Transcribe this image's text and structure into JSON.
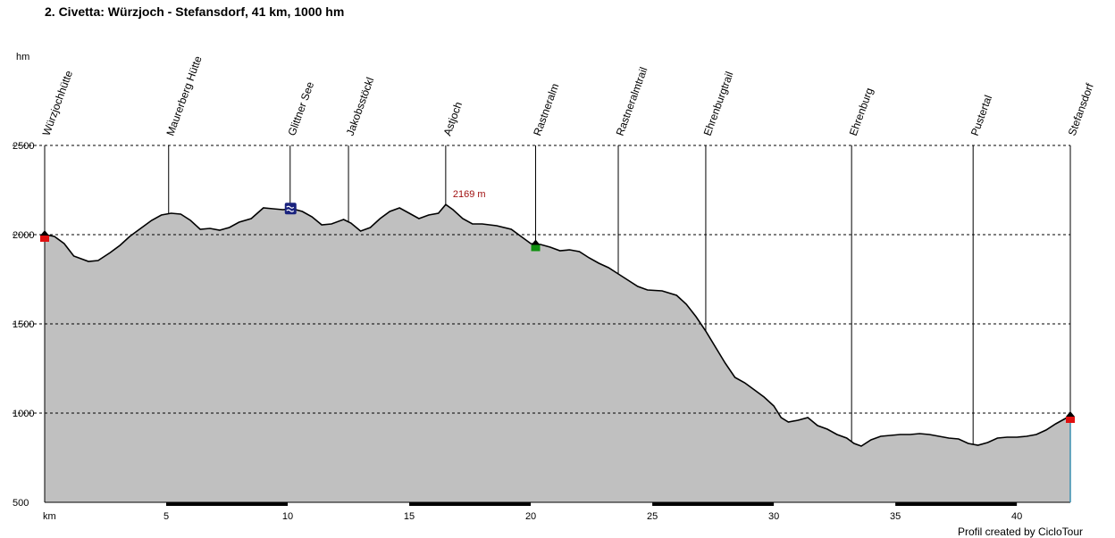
{
  "title": "2. Civetta: Würzjoch - Stefansdorf, 41 km, 1000 hm",
  "credit": "Profil created by CicloTour",
  "chart_data": {
    "type": "area",
    "y_unit": "hm",
    "x_unit": "km",
    "xlim": [
      0,
      42.2
    ],
    "ylim": [
      500,
      2500
    ],
    "x_ticks": [
      5,
      10,
      15,
      20,
      25,
      30,
      35,
      40
    ],
    "y_ticks": [
      500,
      1000,
      1500,
      2000,
      2500
    ],
    "grid": "horizontal dashed",
    "peak_label": "2169 m",
    "peak": {
      "x": 16.5,
      "y": 2169
    },
    "waypoints": [
      {
        "name": "Würzjochhütte",
        "x": 0
      },
      {
        "name": "Maurerberg Hütte",
        "x": 5.1
      },
      {
        "name": "Glittner See",
        "x": 10.1
      },
      {
        "name": "Jakobsstöckl",
        "x": 12.5
      },
      {
        "name": "Astjoch",
        "x": 16.5
      },
      {
        "name": "Rastneralm",
        "x": 20.2
      },
      {
        "name": "Rastneralmtrail",
        "x": 23.6
      },
      {
        "name": "Ehrenburgtrail",
        "x": 27.2
      },
      {
        "name": "Ehrenburg",
        "x": 33.2
      },
      {
        "name": "Pustertal",
        "x": 38.2
      },
      {
        "name": "Stefansdorf",
        "x": 42.2
      }
    ],
    "x": [
      0,
      0.4,
      0.8,
      1.2,
      1.8,
      2.2,
      2.7,
      3.1,
      3.5,
      4.0,
      4.4,
      4.8,
      5.2,
      5.6,
      6.0,
      6.4,
      6.8,
      7.2,
      7.6,
      8.0,
      8.5,
      9.0,
      9.4,
      9.8,
      10.2,
      10.6,
      11.0,
      11.4,
      11.8,
      12.3,
      12.6,
      13.0,
      13.4,
      13.8,
      14.2,
      14.6,
      15.0,
      15.4,
      15.8,
      16.2,
      16.5,
      16.8,
      17.2,
      17.6,
      18.0,
      18.6,
      19.2,
      19.6,
      20.0,
      20.4,
      20.8,
      21.2,
      21.6,
      22.0,
      22.4,
      22.8,
      23.2,
      23.6,
      24.0,
      24.4,
      24.8,
      25.4,
      26.0,
      26.4,
      26.8,
      27.2,
      27.6,
      28.0,
      28.4,
      28.8,
      29.2,
      29.6,
      30.0,
      30.3,
      30.6,
      31.0,
      31.4,
      31.8,
      32.2,
      32.6,
      33.0,
      33.3,
      33.6,
      34.0,
      34.4,
      34.8,
      35.2,
      35.6,
      36.0,
      36.4,
      36.8,
      37.2,
      37.6,
      38.0,
      38.4,
      38.8,
      39.2,
      39.6,
      40.0,
      40.4,
      40.8,
      41.2,
      41.6,
      42.0,
      42.2
    ],
    "y": [
      2000,
      1990,
      1950,
      1880,
      1850,
      1855,
      1900,
      1940,
      1990,
      2040,
      2080,
      2110,
      2120,
      2115,
      2080,
      2030,
      2035,
      2025,
      2040,
      2070,
      2090,
      2150,
      2145,
      2140,
      2145,
      2130,
      2100,
      2055,
      2060,
      2085,
      2065,
      2020,
      2040,
      2090,
      2130,
      2150,
      2120,
      2090,
      2110,
      2120,
      2169,
      2140,
      2090,
      2060,
      2060,
      2050,
      2030,
      1990,
      1950,
      1945,
      1930,
      1910,
      1915,
      1905,
      1870,
      1840,
      1815,
      1780,
      1745,
      1710,
      1690,
      1685,
      1660,
      1610,
      1540,
      1460,
      1370,
      1280,
      1200,
      1170,
      1130,
      1090,
      1040,
      975,
      950,
      960,
      975,
      930,
      910,
      880,
      860,
      830,
      815,
      850,
      870,
      875,
      880,
      880,
      885,
      880,
      870,
      860,
      855,
      830,
      820,
      835,
      860,
      865,
      865,
      870,
      880,
      905,
      940,
      970,
      985
    ]
  }
}
